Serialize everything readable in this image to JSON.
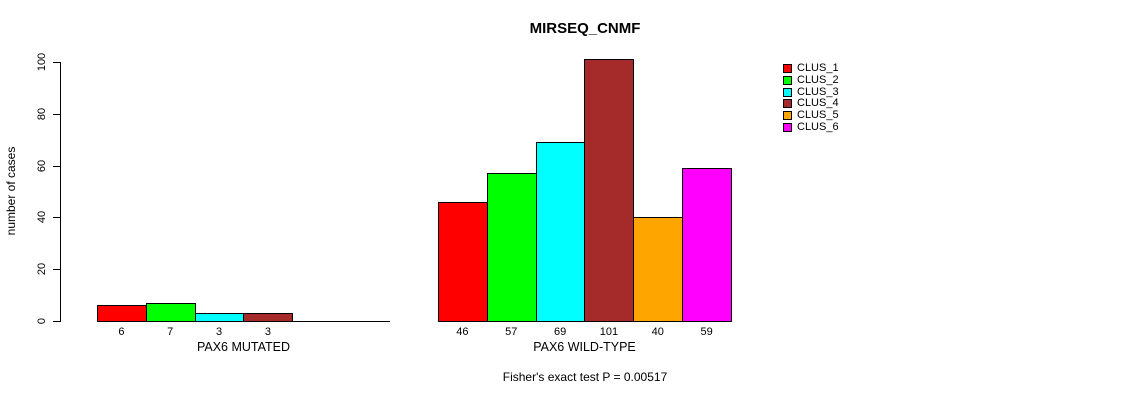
{
  "chart_data": {
    "type": "bar",
    "title": "MIRSEQ_CNMF",
    "ylabel": "number of cases",
    "ylim": [
      0,
      100
    ],
    "yticks": [
      0,
      20,
      40,
      60,
      80,
      100
    ],
    "grid": false,
    "legend_position": "right",
    "annotation": "Fisher's exact test P = 0.00517",
    "clusters": [
      "CLUS_1",
      "CLUS_2",
      "CLUS_3",
      "CLUS_4",
      "CLUS_5",
      "CLUS_6"
    ],
    "colors": [
      "#FF0000",
      "#00FF00",
      "#00FFFF",
      "#A52A2A",
      "#FFA500",
      "#FF00FF"
    ],
    "groups": [
      {
        "label": "PAX6 MUTATED",
        "values": [
          6,
          7,
          3,
          3,
          0,
          0
        ],
        "bar_labels": [
          "6",
          "7",
          "3",
          "3",
          "",
          ""
        ]
      },
      {
        "label": "PAX6 WILD-TYPE",
        "values": [
          46,
          57,
          69,
          101,
          40,
          59
        ],
        "bar_labels": [
          "46",
          "57",
          "69",
          "101",
          "40",
          "59"
        ]
      }
    ]
  }
}
